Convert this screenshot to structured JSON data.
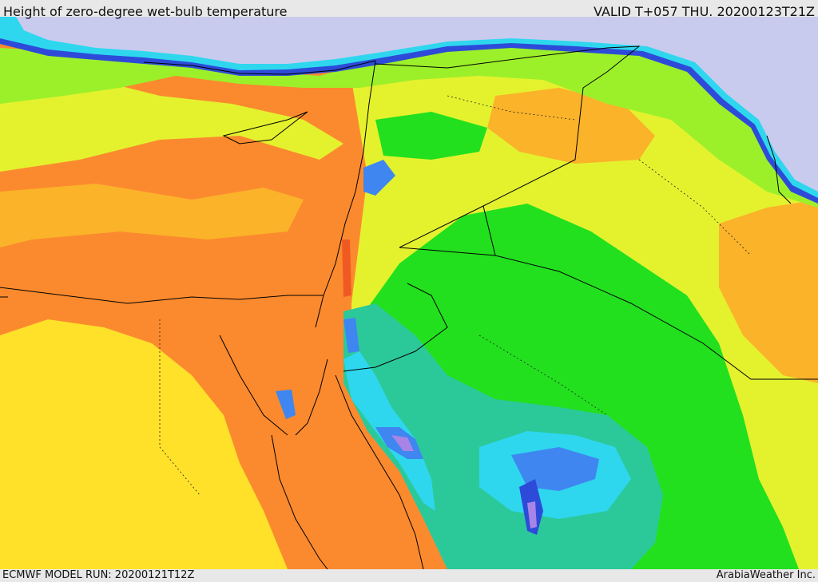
{
  "header": {
    "title": "Height of zero-degree wet-bulb temperature",
    "valid_time": "VALID T+057 THU. 20200123T21Z"
  },
  "footer": {
    "model_run": "ECMWF MODEL RUN: 20200121T12Z",
    "credit": "ArabiaWeather Inc."
  },
  "map": {
    "palette": {
      "sea_cold": "#c8cbee",
      "deep_blue": "#2d4bd8",
      "mid_blue": "#3f86f0",
      "cyan": "#2ed7ee",
      "teal": "#2bc99a",
      "green": "#22e01e",
      "lime": "#9cf02a",
      "yellow_green": "#e4f22e",
      "yellow": "#ffe12a",
      "light_orange": "#fbb32a",
      "orange": "#fb8a2e",
      "red_orange": "#f05a22",
      "purple": "#a884e6",
      "border": "#000000"
    }
  }
}
